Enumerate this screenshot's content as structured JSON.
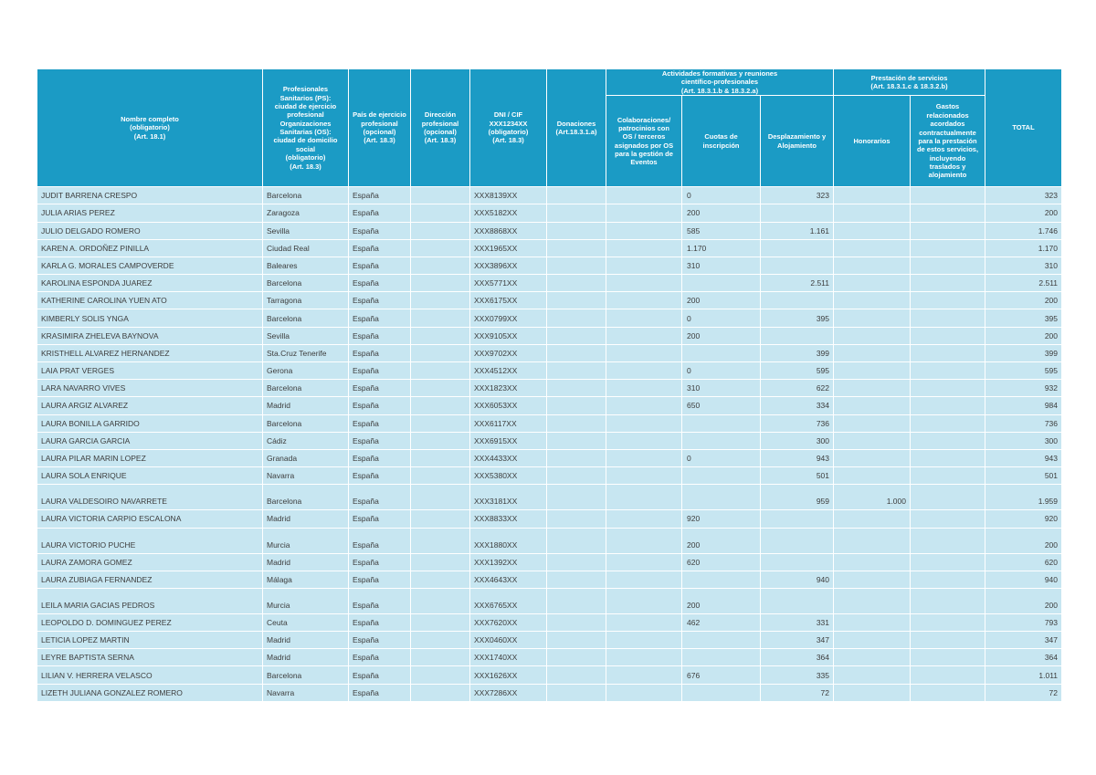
{
  "colors": {
    "header_bg": "#1b9bc5",
    "row_bg": "#c7e6f1",
    "grid": "#ffffff",
    "header_text": "#ffffff",
    "cell_text": "#3c3c3c"
  },
  "table": {
    "group_headers": {
      "actividades": "Actividades formativas y reuniones\ncientífico-profesionales\n(Art. 18.3.1.b & 18.3.2.a)",
      "prestacion": "Prestación de servicios\n(Art. 18.3.1.c & 18.3.2.b)"
    },
    "columns": [
      {
        "id": "name",
        "label": "Nombre completo\n(obligatorio)\n(Art. 18.1)"
      },
      {
        "id": "city",
        "label": "Profesionales\nSanitarios (PS):\nciudad de ejercicio\nprofesional\nOrganizaciones\nSanitarias (OS):\nciudad de domicilio\nsocial\n(obligatorio)\n(Art. 18.3)"
      },
      {
        "id": "country",
        "label": "País de ejercicio\nprofesional\n(opcional)\n(Art. 18.3)"
      },
      {
        "id": "address",
        "label": "Dirección\nprofesional\n(opcional)\n(Art. 18.3)"
      },
      {
        "id": "dni",
        "label": "DNI / CIF\nXXX1234XX\n(obligatorio)\n(Art. 18.3)"
      },
      {
        "id": "donaciones",
        "label": "Donaciones\n(Art.18.3.1.a)"
      },
      {
        "id": "colaboraciones",
        "label": "Colaboraciones/\npatrocinios con\nOS / terceros\nasignados por OS\npara la gestión de\nEventos"
      },
      {
        "id": "cuotas",
        "label": "Cuotas de\ninscripción"
      },
      {
        "id": "desplazamiento",
        "label": "Desplazamiento y\nAlojamiento"
      },
      {
        "id": "honorarios",
        "label": "Honorarios"
      },
      {
        "id": "gastos",
        "label": "Gastos\nrelacionados\nacordados\ncontractualmente\npara la prestación\nde estos servicios,\nincluyendo\ntraslados y\nalojamiento"
      },
      {
        "id": "total",
        "label": "TOTAL"
      }
    ],
    "rows": [
      {
        "name": "JUDIT BARRENA CRESPO",
        "city": "Barcelona",
        "country": "España",
        "address": "",
        "dni": "XXX8139XX",
        "donaciones": "",
        "colaboraciones": "",
        "cuotas": "0",
        "desplazamiento": "323",
        "honorarios": "",
        "gastos": "",
        "total": "323",
        "tall": false
      },
      {
        "name": "JULIA ARIAS PEREZ",
        "city": "Zaragoza",
        "country": "España",
        "address": "",
        "dni": "XXX5182XX",
        "donaciones": "",
        "colaboraciones": "",
        "cuotas": "200",
        "desplazamiento": "",
        "honorarios": "",
        "gastos": "",
        "total": "200",
        "tall": false
      },
      {
        "name": "JULIO DELGADO ROMERO",
        "city": "Sevilla",
        "country": "España",
        "address": "",
        "dni": "XXX8868XX",
        "donaciones": "",
        "colaboraciones": "",
        "cuotas": "585",
        "desplazamiento": "1.161",
        "honorarios": "",
        "gastos": "",
        "total": "1.746",
        "tall": false
      },
      {
        "name": "KAREN A. ORDOÑEZ PINILLA",
        "city": "Ciudad Real",
        "country": "España",
        "address": "",
        "dni": "XXX1965XX",
        "donaciones": "",
        "colaboraciones": "",
        "cuotas": "1.170",
        "desplazamiento": "",
        "honorarios": "",
        "gastos": "",
        "total": "1.170",
        "tall": false
      },
      {
        "name": "KARLA G. MORALES CAMPOVERDE",
        "city": "Baleares",
        "country": "España",
        "address": "",
        "dni": "XXX3896XX",
        "donaciones": "",
        "colaboraciones": "",
        "cuotas": "310",
        "desplazamiento": "",
        "honorarios": "",
        "gastos": "",
        "total": "310",
        "tall": false
      },
      {
        "name": "KAROLINA ESPONDA JUAREZ",
        "city": "Barcelona",
        "country": "España",
        "address": "",
        "dni": "XXX5771XX",
        "donaciones": "",
        "colaboraciones": "",
        "cuotas": "",
        "desplazamiento": "2.511",
        "honorarios": "",
        "gastos": "",
        "total": "2.511",
        "tall": false
      },
      {
        "name": "KATHERINE CAROLINA YUEN ATO",
        "city": "Tarragona",
        "country": "España",
        "address": "",
        "dni": "XXX6175XX",
        "donaciones": "",
        "colaboraciones": "",
        "cuotas": "200",
        "desplazamiento": "",
        "honorarios": "",
        "gastos": "",
        "total": "200",
        "tall": false
      },
      {
        "name": "KIMBERLY SOLIS YNGA",
        "city": "Barcelona",
        "country": "España",
        "address": "",
        "dni": "XXX0799XX",
        "donaciones": "",
        "colaboraciones": "",
        "cuotas": "0",
        "desplazamiento": "395",
        "honorarios": "",
        "gastos": "",
        "total": "395",
        "tall": false
      },
      {
        "name": "KRASIMIRA ZHELEVA BAYNOVA",
        "city": "Sevilla",
        "country": "España",
        "address": "",
        "dni": "XXX9105XX",
        "donaciones": "",
        "colaboraciones": "",
        "cuotas": "200",
        "desplazamiento": "",
        "honorarios": "",
        "gastos": "",
        "total": "200",
        "tall": false
      },
      {
        "name": "KRISTHELL ALVAREZ HERNANDEZ",
        "city": "Sta.Cruz Tenerife",
        "country": "España",
        "address": "",
        "dni": "XXX9702XX",
        "donaciones": "",
        "colaboraciones": "",
        "cuotas": "",
        "desplazamiento": "399",
        "honorarios": "",
        "gastos": "",
        "total": "399",
        "tall": false
      },
      {
        "name": "LAIA PRAT VERGES",
        "city": "Gerona",
        "country": "España",
        "address": "",
        "dni": "XXX4512XX",
        "donaciones": "",
        "colaboraciones": "",
        "cuotas": "0",
        "desplazamiento": "595",
        "honorarios": "",
        "gastos": "",
        "total": "595",
        "tall": false
      },
      {
        "name": "LARA NAVARRO VIVES",
        "city": "Barcelona",
        "country": "España",
        "address": "",
        "dni": "XXX1823XX",
        "donaciones": "",
        "colaboraciones": "",
        "cuotas": "310",
        "desplazamiento": "622",
        "honorarios": "",
        "gastos": "",
        "total": "932",
        "tall": false
      },
      {
        "name": "LAURA ARGIZ ALVAREZ",
        "city": "Madrid",
        "country": "España",
        "address": "",
        "dni": "XXX6053XX",
        "donaciones": "",
        "colaboraciones": "",
        "cuotas": "650",
        "desplazamiento": "334",
        "honorarios": "",
        "gastos": "",
        "total": "984",
        "tall": false
      },
      {
        "name": "LAURA BONILLA GARRIDO",
        "city": "Barcelona",
        "country": "España",
        "address": "",
        "dni": "XXX6117XX",
        "donaciones": "",
        "colaboraciones": "",
        "cuotas": "",
        "desplazamiento": "736",
        "honorarios": "",
        "gastos": "",
        "total": "736",
        "tall": false
      },
      {
        "name": "LAURA GARCIA GARCIA",
        "city": "Cádiz",
        "country": "España",
        "address": "",
        "dni": "XXX6915XX",
        "donaciones": "",
        "colaboraciones": "",
        "cuotas": "",
        "desplazamiento": "300",
        "honorarios": "",
        "gastos": "",
        "total": "300",
        "tall": false
      },
      {
        "name": "LAURA PILAR MARIN LOPEZ",
        "city": "Granada",
        "country": "España",
        "address": "",
        "dni": "XXX4433XX",
        "donaciones": "",
        "colaboraciones": "",
        "cuotas": "0",
        "desplazamiento": "943",
        "honorarios": "",
        "gastos": "",
        "total": "943",
        "tall": false
      },
      {
        "name": "LAURA SOLA ENRIQUE",
        "city": "Navarra",
        "country": "España",
        "address": "",
        "dni": "XXX5380XX",
        "donaciones": "",
        "colaboraciones": "",
        "cuotas": "",
        "desplazamiento": "501",
        "honorarios": "",
        "gastos": "",
        "total": "501",
        "tall": false
      },
      {
        "name": "LAURA VALDESOIRO NAVARRETE",
        "city": "Barcelona",
        "country": "España",
        "address": "",
        "dni": "XXX3181XX",
        "donaciones": "",
        "colaboraciones": "",
        "cuotas": "",
        "desplazamiento": "959",
        "honorarios": "1.000",
        "gastos": "",
        "total": "1.959",
        "tall": true
      },
      {
        "name": "LAURA VICTORIA CARPIO ESCALONA",
        "city": "Madrid",
        "country": "España",
        "address": "",
        "dni": "XXX8833XX",
        "donaciones": "",
        "colaboraciones": "",
        "cuotas": "920",
        "desplazamiento": "",
        "honorarios": "",
        "gastos": "",
        "total": "920",
        "tall": false
      },
      {
        "name": "LAURA VICTORIO PUCHE",
        "city": "Murcia",
        "country": "España",
        "address": "",
        "dni": "XXX1880XX",
        "donaciones": "",
        "colaboraciones": "",
        "cuotas": "200",
        "desplazamiento": "",
        "honorarios": "",
        "gastos": "",
        "total": "200",
        "tall": true
      },
      {
        "name": "LAURA ZAMORA GOMEZ",
        "city": "Madrid",
        "country": "España",
        "address": "",
        "dni": "XXX1392XX",
        "donaciones": "",
        "colaboraciones": "",
        "cuotas": "620",
        "desplazamiento": "",
        "honorarios": "",
        "gastos": "",
        "total": "620",
        "tall": false
      },
      {
        "name": "LAURA ZUBIAGA FERNANDEZ",
        "city": "Málaga",
        "country": "España",
        "address": "",
        "dni": "XXX4643XX",
        "donaciones": "",
        "colaboraciones": "",
        "cuotas": "",
        "desplazamiento": "940",
        "honorarios": "",
        "gastos": "",
        "total": "940",
        "tall": false
      },
      {
        "name": "LEILA MARIA GACIAS PEDROS",
        "city": "Murcia",
        "country": "España",
        "address": "",
        "dni": "XXX6765XX",
        "donaciones": "",
        "colaboraciones": "",
        "cuotas": "200",
        "desplazamiento": "",
        "honorarios": "",
        "gastos": "",
        "total": "200",
        "tall": true
      },
      {
        "name": "LEOPOLDO D. DOMINGUEZ PEREZ",
        "city": "Ceuta",
        "country": "España",
        "address": "",
        "dni": "XXX7620XX",
        "donaciones": "",
        "colaboraciones": "",
        "cuotas": "462",
        "desplazamiento": "331",
        "honorarios": "",
        "gastos": "",
        "total": "793",
        "tall": false
      },
      {
        "name": "LETICIA LOPEZ MARTIN",
        "city": "Madrid",
        "country": "España",
        "address": "",
        "dni": "XXX0460XX",
        "donaciones": "",
        "colaboraciones": "",
        "cuotas": "",
        "desplazamiento": "347",
        "honorarios": "",
        "gastos": "",
        "total": "347",
        "tall": false
      },
      {
        "name": "LEYRE BAPTISTA SERNA",
        "city": "Madrid",
        "country": "España",
        "address": "",
        "dni": "XXX1740XX",
        "donaciones": "",
        "colaboraciones": "",
        "cuotas": "",
        "desplazamiento": "364",
        "honorarios": "",
        "gastos": "",
        "total": "364",
        "tall": false
      },
      {
        "name": "LILIAN V. HERRERA VELASCO",
        "city": "Barcelona",
        "country": "España",
        "address": "",
        "dni": "XXX1626XX",
        "donaciones": "",
        "colaboraciones": "",
        "cuotas": "676",
        "desplazamiento": "335",
        "honorarios": "",
        "gastos": "",
        "total": "1.011",
        "tall": false
      },
      {
        "name": "LIZETH JULIANA GONZALEZ ROMERO",
        "city": "Navarra",
        "country": "España",
        "address": "",
        "dni": "XXX7286XX",
        "donaciones": "",
        "colaboraciones": "",
        "cuotas": "",
        "desplazamiento": "72",
        "honorarios": "",
        "gastos": "",
        "total": "72",
        "tall": false
      }
    ]
  }
}
